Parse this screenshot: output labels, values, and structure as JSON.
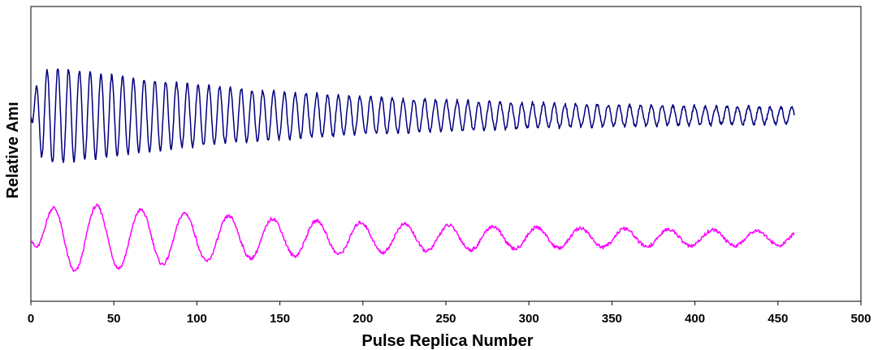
{
  "chart_data": {
    "type": "line",
    "title": "",
    "xlabel": "Pulse Replica Number",
    "ylabel": "Relative Amı",
    "xlim": [
      0,
      500
    ],
    "xticks": [
      "0",
      "50",
      "100",
      "150",
      "200",
      "250",
      "300",
      "350",
      "400",
      "450",
      "500"
    ],
    "ylim": [
      0,
      1
    ],
    "grid": false,
    "legend": "none",
    "series": [
      {
        "color": "#000080",
        "x_range": [
          0,
          460
        ],
        "baseline": 0.63,
        "amplitude_start": 0.18,
        "amplitude_end": 0.02,
        "decay_rate": 0.0065,
        "period": 6.5,
        "points": 1600
      },
      {
        "color": "#ff00ff",
        "x_range": [
          0,
          460
        ],
        "baseline": 0.215,
        "amplitude_start": 0.135,
        "amplitude_end": 0.018,
        "decay_rate": 0.0062,
        "period": 26.5,
        "points": 1200
      }
    ]
  }
}
